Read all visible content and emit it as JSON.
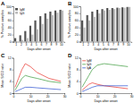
{
  "chart_data": [
    {
      "type": "bar",
      "title": "A",
      "x_label": "Days after onset",
      "y_label": "% Positive samples",
      "categories": [
        "1",
        "2",
        "3",
        "4",
        "5",
        "6",
        "7",
        "8",
        "9",
        "10"
      ],
      "series": [
        {
          "name": "IgM",
          "color": "#555555",
          "values": [
            10,
            18,
            30,
            45,
            60,
            72,
            80,
            85,
            88,
            90
          ]
        },
        {
          "name": "IgG",
          "color": "#bbbbbb",
          "values": [
            0,
            5,
            10,
            20,
            35,
            50,
            65,
            75,
            82,
            88
          ]
        }
      ],
      "ylim": [
        0,
        100
      ],
      "yticks": [
        0,
        20,
        40,
        60,
        80,
        100
      ],
      "legend": "top-left"
    },
    {
      "type": "bar",
      "title": "B",
      "x_label": "Days after onset",
      "y_label": "% Positive samples",
      "categories": [
        "1",
        "2",
        "3",
        "4",
        "5",
        "6",
        "7",
        "8",
        "9",
        "10"
      ],
      "series": [
        {
          "color": "#555555",
          "values": [
            60,
            75,
            85,
            90,
            92,
            95,
            95,
            96,
            97,
            98
          ]
        },
        {
          "color": "#bbbbbb",
          "values": [
            40,
            60,
            70,
            80,
            88,
            90,
            92,
            95,
            96,
            98
          ]
        }
      ],
      "ylim": [
        0,
        100
      ],
      "yticks": [
        0,
        20,
        40,
        60,
        80,
        100
      ]
    },
    {
      "type": "line",
      "title": "C",
      "x_label": "Days after onset",
      "y_label": "Mean S/CO ratio",
      "x": [
        1,
        3,
        5,
        7,
        10,
        14,
        21,
        28
      ],
      "series": [
        {
          "color": "#e8302a",
          "values": [
            2,
            5,
            8,
            10,
            9,
            7,
            5,
            4
          ]
        },
        {
          "color": "#3a9a3a",
          "values": [
            1,
            3,
            5,
            6,
            5.5,
            5,
            4,
            3.5
          ]
        },
        {
          "color": "#2a4fd0",
          "values": [
            0.5,
            1,
            1.5,
            2,
            2,
            1.8,
            1.5,
            1.2
          ]
        }
      ],
      "xlim": [
        0,
        30
      ],
      "xticks": [
        0,
        10,
        20,
        30
      ],
      "ylim": [
        0,
        12
      ],
      "yticks": [
        0,
        4,
        8,
        12
      ]
    },
    {
      "type": "line",
      "title": "D",
      "x_label": "Days after onset",
      "y_label": "Mean S/CO ratio",
      "x": [
        1,
        3,
        5,
        7,
        10,
        14,
        21,
        28
      ],
      "series": [
        {
          "name": "IgM",
          "color": "#e8302a",
          "values": [
            1,
            2,
            3,
            3.5,
            3,
            2.5,
            2,
            1.5
          ]
        },
        {
          "name": "IgG",
          "color": "#3a9a3a",
          "values": [
            2,
            4,
            6,
            8,
            9.5,
            10,
            9.5,
            9
          ]
        },
        {
          "name": "IgA",
          "color": "#2a4fd0",
          "values": [
            0.5,
            1,
            1.5,
            2,
            2.5,
            2.5,
            2.5,
            2.5
          ]
        }
      ],
      "xlim": [
        0,
        30
      ],
      "xticks": [
        0,
        10,
        20,
        30
      ],
      "ylim": [
        0,
        12
      ],
      "yticks": [
        0,
        4,
        8,
        12
      ],
      "legend": "top-left"
    }
  ]
}
